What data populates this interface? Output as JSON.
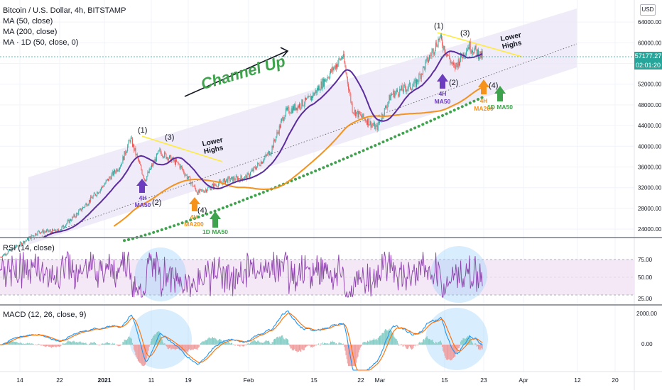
{
  "header": {
    "title": "Bitcoin / U.S. Dollar, 4h, BITSTAMP",
    "ma50": "MA (50, close)",
    "ma200": "MA (200, close)",
    "ma1d": "MA · 1D (50, close, 0)",
    "currency": "USD",
    "last_price": "57177.27",
    "countdown": "02:01:20"
  },
  "colors": {
    "up": "#26a69a",
    "down": "#ef5350",
    "ma50": "#5b2c9e",
    "ma200": "#f5921b",
    "ma1d": "#3fa34d",
    "channel": "#ece8f7",
    "rsi": "#8e44ad",
    "macd": "#2196f3",
    "signal": "#ff6d00"
  },
  "annotations": {
    "channel": "Channel Up",
    "lower_highs_1": "Lower\nHighs",
    "lower_highs_2": "Lower\nHighs",
    "p1a": "(1)",
    "p2a": "(2)",
    "p3a": "(3)",
    "p4a": "(4)",
    "p1b": "(1)",
    "p2b": "(2)",
    "p3b": "(3)",
    "p4b": "(4)",
    "ma50_4h_a": "4H\nMA50",
    "ma200_4h_a": "4H\nMA200",
    "ma50_1d_a": "1D MA50",
    "ma50_4h_b": "4H\nMA50",
    "ma200_4h_b": "4H\nMA200",
    "ma50_1d_b": "1D MA50"
  },
  "rsi": {
    "label": "RSI (14, close)",
    "ticks": [
      "75.00",
      "50.00",
      "25.00"
    ],
    "upper": 70,
    "lower": 30
  },
  "macd": {
    "label": "MACD (12, 26, close, 9)",
    "ticks": [
      "2000.00",
      "0.00"
    ]
  },
  "chart_data": {
    "type": "candlestick",
    "title": "Bitcoin / U.S. Dollar, 4h, BITSTAMP",
    "y_ticks": [
      24000,
      28000,
      32000,
      36000,
      40000,
      44000,
      48000,
      52000,
      56000,
      60000,
      64000
    ],
    "x_ticks": [
      "14",
      "22",
      "2021",
      "11",
      "19",
      "Feb",
      "15",
      "22",
      "Mar",
      "15",
      "23",
      "Apr",
      "12",
      "20"
    ],
    "last_price": 57177.27,
    "price_path": [
      {
        "date": "2020-12-12",
        "close": 18600
      },
      {
        "date": "2020-12-16",
        "close": 21000
      },
      {
        "date": "2020-12-20",
        "close": 23500
      },
      {
        "date": "2020-12-24",
        "close": 23600
      },
      {
        "date": "2020-12-28",
        "close": 27000
      },
      {
        "date": "2021-01-02",
        "close": 32000
      },
      {
        "date": "2021-01-06",
        "close": 36500
      },
      {
        "date": "2021-01-08",
        "close": 41500
      },
      {
        "date": "2021-01-11",
        "close": 33500
      },
      {
        "date": "2021-01-14",
        "close": 39000
      },
      {
        "date": "2021-01-18",
        "close": 36500
      },
      {
        "date": "2021-01-22",
        "close": 31000
      },
      {
        "date": "2021-01-28",
        "close": 33500
      },
      {
        "date": "2021-02-01",
        "close": 34000
      },
      {
        "date": "2021-02-06",
        "close": 39000
      },
      {
        "date": "2021-02-09",
        "close": 46500
      },
      {
        "date": "2021-02-14",
        "close": 49000
      },
      {
        "date": "2021-02-17",
        "close": 52500
      },
      {
        "date": "2021-02-21",
        "close": 57500
      },
      {
        "date": "2021-02-23",
        "close": 47000
      },
      {
        "date": "2021-02-28",
        "close": 43500
      },
      {
        "date": "2021-03-03",
        "close": 50000
      },
      {
        "date": "2021-03-08",
        "close": 52000
      },
      {
        "date": "2021-03-13",
        "close": 61000
      },
      {
        "date": "2021-03-16",
        "close": 55000
      },
      {
        "date": "2021-03-19",
        "close": 59500
      },
      {
        "date": "2021-03-22",
        "close": 57177
      }
    ]
  }
}
